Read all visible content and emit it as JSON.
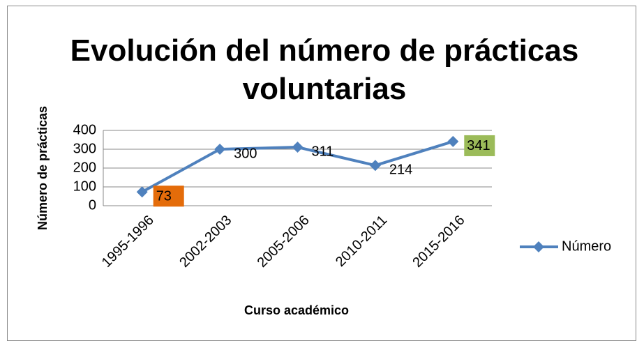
{
  "chart_data": {
    "type": "line",
    "title": "Evolución del número de prácticas voluntarias",
    "x_label": "Curso académico",
    "y_label": "Número de prácticas",
    "categories": [
      "1995-1996",
      "2002-2003",
      "2005-2006",
      "2010-2011",
      "2015-2016"
    ],
    "series": [
      {
        "name": "Número",
        "color": "#4f81bd",
        "values": [
          73,
          300,
          311,
          214,
          341
        ]
      }
    ],
    "data_label_backgrounds": [
      "#e46c0a",
      null,
      null,
      null,
      "#9bbb59"
    ],
    "ylim": [
      0,
      400
    ],
    "yticks": [
      0,
      100,
      200,
      300,
      400
    ],
    "grid": true,
    "legend": "right"
  }
}
